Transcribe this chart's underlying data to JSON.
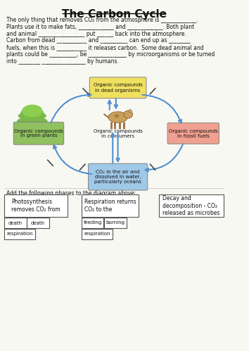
{
  "title": "The Carbon Cycle",
  "bg_color": "#f8f8f3",
  "text_color": "#111111",
  "para1_lines": [
    "The only thing that removes CO₂ from the atmosphere is _____________.",
    "Plants use it to make fats, _____________ and _____________. Both plant",
    "and animal _________________ put ______ back into the atmosphere."
  ],
  "para2_lines": [
    "Carbon from dead ___________ and __________ can end up as ________",
    "fuels, when this is ___________ it releases carbon.  Some dead animal and",
    "plants could be __________, be ______________ by microorganisms or be turned",
    "into ________ ________________ by humans."
  ],
  "node_yellow_text": "Organic compounds\nin dead organisms",
  "node_pink_text": "Organic compounds\nin fossil fuels",
  "node_blue_text": "CO₂ in the air and\ndissolved in water,\nparticularly oceans",
  "node_green_text": "Organic compounds\nin green plants",
  "node_center_text": "Organic compounds\nin consumers",
  "node_yellow_color": "#f0e060",
  "node_pink_color": "#f0a090",
  "node_blue_color": "#a0c8e8",
  "node_green_color": "#90c060",
  "arrow_color": "#5090d0",
  "add_text": "Add the following phases to the diagram above:",
  "box1_title": "Photosynthesis\nremoves CO₂ from",
  "box2_title": "Respiration returns\nCO₂ to the",
  "box3_title": "Decay and\ndecomposition - CO₂\nreleased as microbes",
  "small_boxes_row1": [
    "death",
    "death",
    "feeding",
    "burning"
  ],
  "small_boxes_row2": [
    "respiration",
    "respiration"
  ]
}
